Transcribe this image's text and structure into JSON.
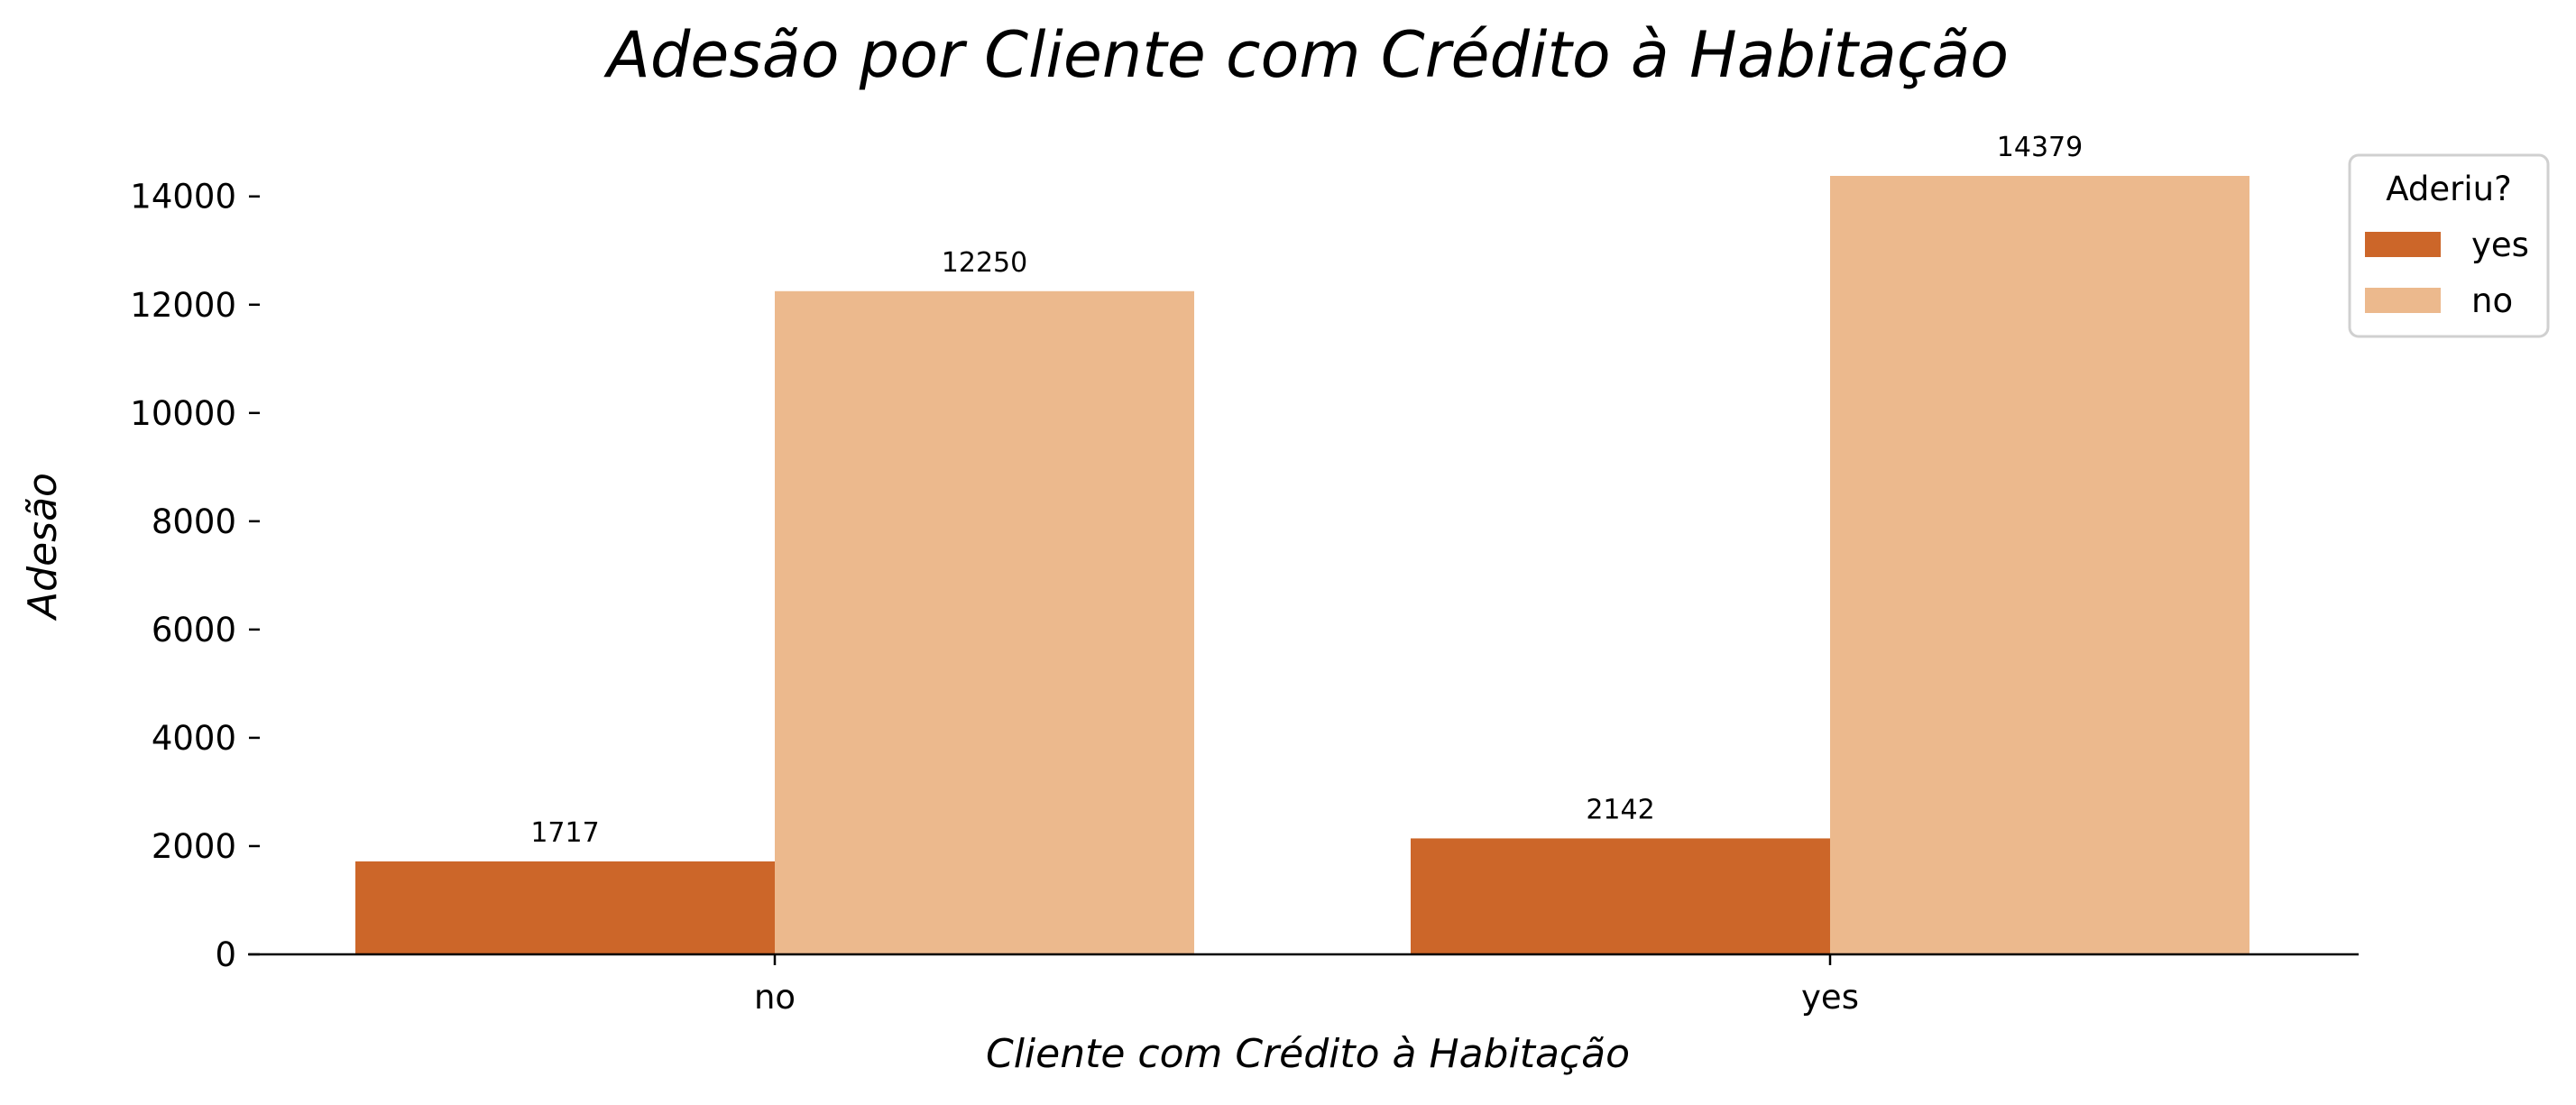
{
  "chart_data": {
    "type": "bar",
    "title": "Adesão por Cliente com Crédito à Habitação",
    "xlabel": "Cliente com Crédito à Habitação",
    "ylabel": "Adesão",
    "categories": [
      "no",
      "yes"
    ],
    "series": [
      {
        "name": "yes",
        "values": [
          1717,
          2142
        ],
        "color": "#cc6629"
      },
      {
        "name": "no",
        "values": [
          12250,
          14379
        ],
        "color": "#ecb98d"
      }
    ],
    "ylim": [
      0,
      14379
    ],
    "yticks": [
      0,
      2000,
      4000,
      6000,
      8000,
      10000,
      12000,
      14000
    ],
    "ytick_labels": [
      "0",
      "2000",
      "4000",
      "6000",
      "8000",
      "10000",
      "12000",
      "14000"
    ],
    "data_labels": [
      [
        "1717",
        "2142"
      ],
      [
        "12250",
        "14379"
      ]
    ],
    "grid": false,
    "legend": {
      "title": "Aderiu?",
      "position": "top-right"
    }
  }
}
